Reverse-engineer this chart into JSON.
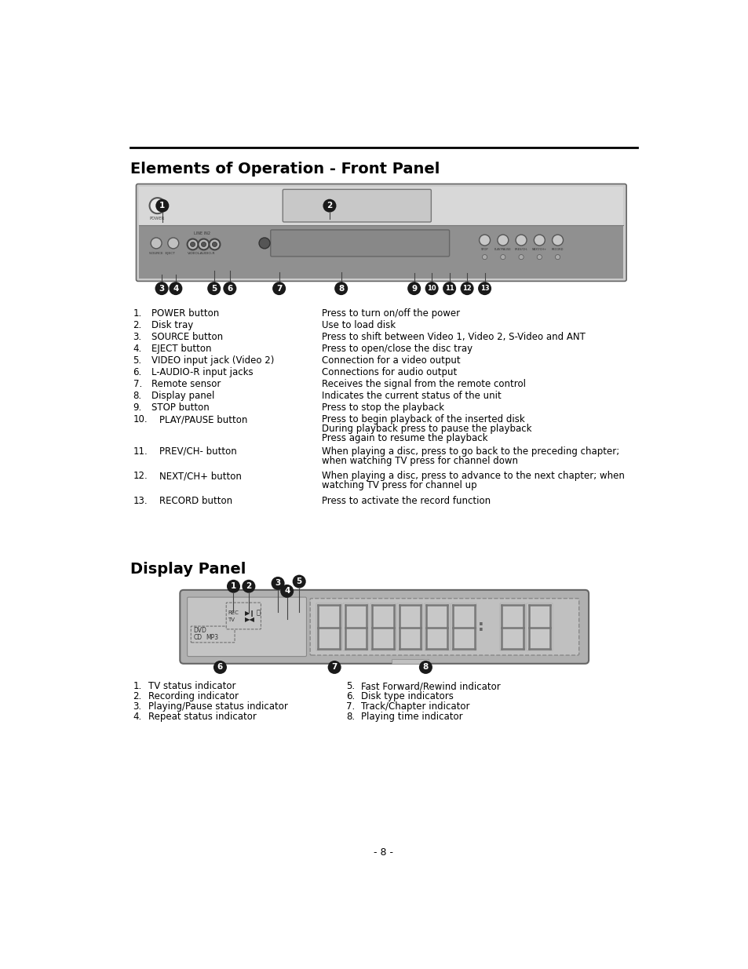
{
  "title1": "Elements of Operation - Front Panel",
  "title2": "Display Panel",
  "bg_color": "#ffffff",
  "text_color": "#000000",
  "front_panel_items": [
    [
      "1.",
      "POWER button",
      "Press to turn on/off the power"
    ],
    [
      "2.",
      "Disk tray",
      "Use to load disk"
    ],
    [
      "3.",
      "SOURCE button",
      "Press to shift between Video 1, Video 2, S-Video and ANT"
    ],
    [
      "4.",
      "EJECT button",
      "Press to open/close the disc tray"
    ],
    [
      "5.",
      "VIDEO input jack (Video 2)",
      "Connection for a video output"
    ],
    [
      "6.",
      "L-AUDIO-R input jacks",
      "Connections for audio output"
    ],
    [
      "7.",
      "Remote sensor",
      "Receives the signal from the remote control"
    ],
    [
      "8.",
      "Display panel",
      "Indicates the current status of the unit"
    ],
    [
      "9.",
      "STOP button",
      "Press to stop the playback"
    ],
    [
      "10.",
      "PLAY/PAUSE button",
      "Press to begin playback of the inserted disk\nDuring playback press to pause the playback\nPress again to resume the playback"
    ],
    [
      "11.",
      "PREV/CH- button",
      "When playing a disc, press to go back to the preceding chapter;\nwhen watching TV press for channel down"
    ],
    [
      "12.",
      "NEXT/CH+ button",
      "When playing a disc, press to advance to the next chapter; when\nwatching TV press for channel up"
    ],
    [
      "13.",
      "RECORD button",
      "Press to activate the record function"
    ]
  ],
  "display_panel_items_left": [
    [
      "1.",
      "TV status indicator"
    ],
    [
      "2.",
      "Recording indicator"
    ],
    [
      "3.",
      "Playing/Pause status indicator"
    ],
    [
      "4.",
      "Repeat status indicator"
    ]
  ],
  "display_panel_items_right": [
    [
      "5.",
      "Fast Forward/Rewind indicator"
    ],
    [
      "6.",
      "Disk type indicators"
    ],
    [
      "7.",
      "Track/Chapter indicator"
    ],
    [
      "8.",
      "Playing time indicator"
    ]
  ],
  "page_number": "- 8 -",
  "callout_bg": "#1a1a1a",
  "callout_text": "#ffffff"
}
